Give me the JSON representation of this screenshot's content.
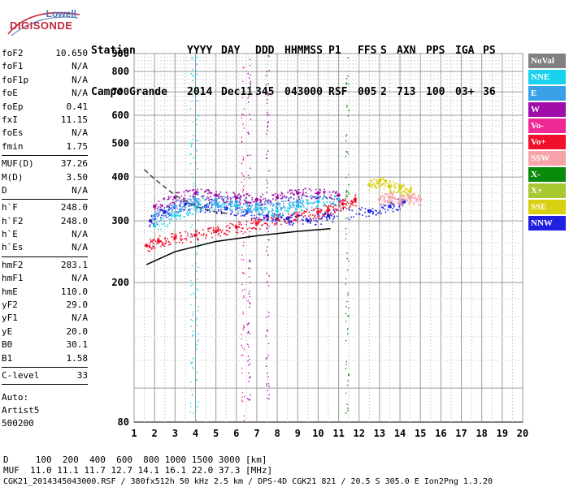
{
  "logo": {
    "line1": "Lowell",
    "line2": "DIGISONDE"
  },
  "header": {
    "row1": [
      "Station",
      "YYYY",
      "DAY",
      "DDD",
      "HHMMSS",
      "P1",
      "FFS",
      "S",
      "AXN",
      "PPS",
      "IGA",
      "PS"
    ],
    "row2": [
      "Campo Grande",
      "2014",
      "Dec11",
      "345",
      "043000",
      "RSF",
      "005",
      "2",
      "713",
      "100",
      "03+",
      "36"
    ]
  },
  "params": [
    {
      "k": "foF2",
      "v": "10.650"
    },
    {
      "k": "foF1",
      "v": "N/A"
    },
    {
      "k": "foF1p",
      "v": "N/A"
    },
    {
      "k": "foE",
      "v": "N/A"
    },
    {
      "k": "foEp",
      "v": "0.41"
    },
    {
      "k": "fxI",
      "v": "11.15"
    },
    {
      "k": "foEs",
      "v": "N/A"
    },
    {
      "k": "fmin",
      "v": "1.75",
      "sep": true
    },
    {
      "k": "MUF(D)",
      "v": "37.26"
    },
    {
      "k": "M(D)",
      "v": "3.50"
    },
    {
      "k": "D",
      "v": "N/A",
      "sep": true
    },
    {
      "k": "h`F",
      "v": "248.0"
    },
    {
      "k": "h`F2",
      "v": "248.0"
    },
    {
      "k": "h`E",
      "v": "N/A"
    },
    {
      "k": "h`Es",
      "v": "N/A",
      "sep": true
    },
    {
      "k": "hmF2",
      "v": "283.1"
    },
    {
      "k": "hmF1",
      "v": "N/A"
    },
    {
      "k": "hmE",
      "v": "110.0"
    },
    {
      "k": "yF2",
      "v": "29.0"
    },
    {
      "k": "yF1",
      "v": "N/A"
    },
    {
      "k": "yE",
      "v": "20.0"
    },
    {
      "k": "B0",
      "v": "30.1"
    },
    {
      "k": "B1",
      "v": "1.58",
      "sep": true
    },
    {
      "k": "C-level",
      "v": "33",
      "sep": true
    }
  ],
  "auto": {
    "l1": "Auto:",
    "l2": "Artist5",
    "l3": "500200"
  },
  "legend": [
    {
      "label": "NoVal",
      "color": "#808080"
    },
    {
      "label": "NNE",
      "color": "#19d2f0"
    },
    {
      "label": "E",
      "color": "#3aa0e8"
    },
    {
      "label": "W",
      "color": "#a00ca8"
    },
    {
      "label": "Vo-",
      "color": "#f02896"
    },
    {
      "label": "Vo+",
      "color": "#f0102c"
    },
    {
      "label": "SSW",
      "color": "#f5a3a8"
    },
    {
      "label": "X-",
      "color": "#0a8a0a"
    },
    {
      "label": "X+",
      "color": "#a8c832"
    },
    {
      "label": "SSE",
      "color": "#d8d010"
    },
    {
      "label": "NNW",
      "color": "#2020e0"
    }
  ],
  "footer": {
    "d_row": "D     100  200  400  600  800 1000 1500 3000 [km]",
    "muf_row": "MUF  11.0 11.1 11.7 12.7 14.1 16.1 22.0 37.3 [MHz]",
    "info": "CGK21_2014345043000.RSF / 380fx512h 50 kHz 2.5 km / DPS-4D CGK21 821 / 20.5 S 305.0 E Ion2Png 1.3.20"
  },
  "chart_data": {
    "type": "scatter",
    "xlim": [
      1,
      20
    ],
    "ylim": [
      80,
      900
    ],
    "yscale": "log",
    "xticks": [
      "1",
      "2",
      "3",
      "4",
      "5",
      "6",
      "7",
      "8",
      "9",
      "10",
      "11",
      "12",
      "13",
      "14",
      "15",
      "16",
      "17",
      "18",
      "19",
      "20"
    ],
    "yticks": [
      "80",
      "200",
      "300",
      "400",
      "500",
      "600",
      "700",
      "800",
      "900"
    ],
    "yticks_values": [
      80,
      200,
      300,
      400,
      500,
      600,
      700,
      800,
      900
    ],
    "grid": true,
    "series": [
      {
        "name": "Vo+",
        "color": "#f0102c",
        "x": [
          1.6,
          2.2,
          3,
          4,
          5,
          6,
          7,
          8,
          9,
          10,
          10.5,
          11.2,
          11.8
        ],
        "y": [
          255,
          262,
          268,
          273,
          280,
          288,
          295,
          303,
          310,
          318,
          322,
          335,
          345
        ]
      },
      {
        "name": "NNW",
        "color": "#2020e0",
        "x": [
          1.8,
          2.5,
          3.5,
          4.5,
          5.5,
          6.5,
          7.5,
          8.5,
          9.5,
          10.5,
          12.5,
          13.5,
          14.2
        ],
        "y": [
          300,
          318,
          335,
          330,
          325,
          320,
          310,
          305,
          300,
          310,
          320,
          330,
          340
        ]
      },
      {
        "name": "NNE",
        "color": "#19d2f0",
        "x": [
          2,
          3,
          4,
          5,
          6,
          7,
          8,
          9,
          10,
          11
        ],
        "y": [
          290,
          310,
          330,
          335,
          330,
          325,
          320,
          330,
          340,
          345
        ]
      },
      {
        "name": "E",
        "color": "#3aa0e8",
        "x": [
          2,
          3,
          4,
          5,
          6,
          7,
          8,
          9,
          10
        ],
        "y": [
          310,
          330,
          345,
          345,
          340,
          335,
          335,
          340,
          350
        ]
      },
      {
        "name": "W",
        "color": "#a00ca8",
        "x": [
          2,
          3,
          4,
          5,
          6,
          7,
          8,
          9,
          10,
          11
        ],
        "y": [
          330,
          350,
          360,
          355,
          350,
          345,
          350,
          360,
          360,
          355
        ]
      },
      {
        "name": "SSE",
        "color": "#d8d010",
        "x": [
          12.5,
          13,
          13.5,
          14,
          14.5
        ],
        "y": [
          380,
          390,
          375,
          370,
          365
        ]
      },
      {
        "name": "SSW",
        "color": "#f5a3a8",
        "x": [
          13,
          13.5,
          14,
          14.5,
          15
        ],
        "y": [
          345,
          350,
          340,
          350,
          345
        ]
      }
    ],
    "lines": [
      {
        "x": [
          1.6,
          3,
          5,
          7,
          9,
          10.6
        ],
        "y": [
          225,
          245,
          262,
          272,
          280,
          285
        ],
        "color": "#000000",
        "style": "solid"
      },
      {
        "x": [
          1.5,
          2,
          3,
          4,
          5,
          5.5
        ],
        "y": [
          420,
          395,
          355,
          330,
          318,
          315
        ],
        "color": "#444444",
        "style": "dashed"
      }
    ]
  }
}
